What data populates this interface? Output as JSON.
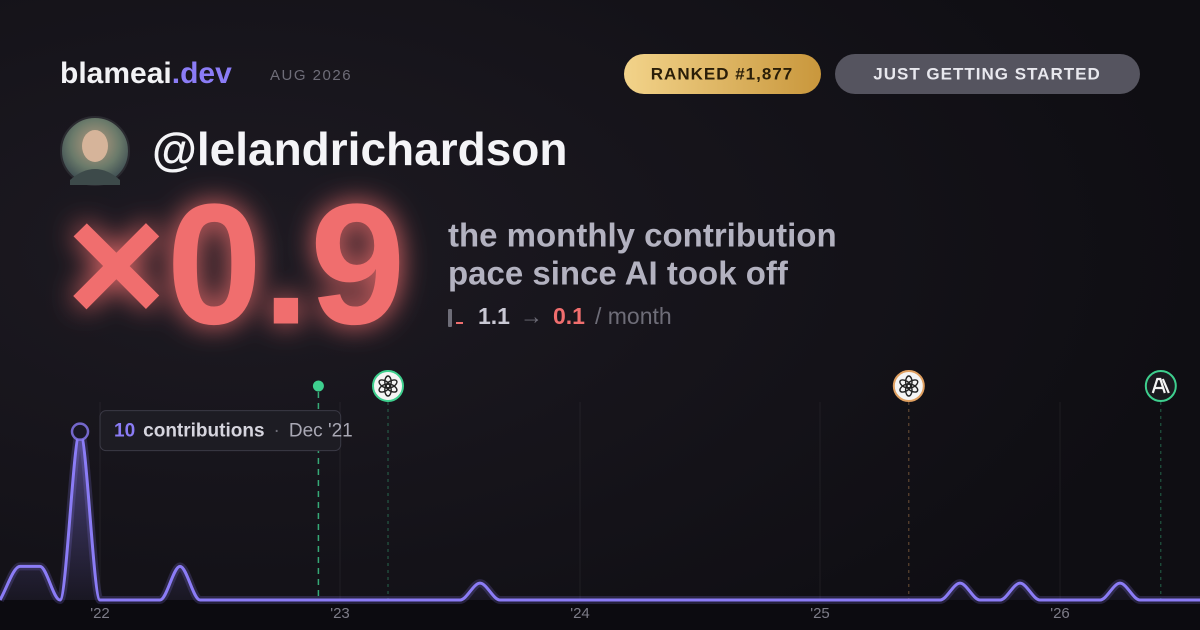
{
  "header": {
    "brand": "blameai",
    "brand_suffix": ".dev",
    "date": "AUG 2026",
    "rank": "RANKED #1,877",
    "status": "JUST GETTING STARTED"
  },
  "profile": {
    "username": "@lelandrichardson"
  },
  "stat": {
    "multiplier": "×0.9",
    "description": [
      "the monthly contribution",
      "pace since AI took off"
    ],
    "before": "1.1",
    "arrow": "→",
    "after": "0.1",
    "unit": "/ month"
  },
  "chart_data": {
    "type": "area",
    "color": "#8b7cf6",
    "x": [
      2021.5833,
      2021.6667,
      2021.75,
      2021.8333,
      2021.9167,
      2022,
      2022.0833,
      2022.1667,
      2022.25,
      2022.3333,
      2022.4167,
      2022.5,
      2022.5833,
      2022.6667,
      2022.75,
      2022.8333,
      2022.9167,
      2023,
      2023.0833,
      2023.1667,
      2023.25,
      2023.3333,
      2023.4167,
      2023.5,
      2023.5833,
      2023.6667,
      2023.75,
      2023.8333,
      2023.9167,
      2024,
      2024.0833,
      2024.1667,
      2024.25,
      2024.3333,
      2024.4167,
      2024.5,
      2024.5833,
      2024.6667,
      2024.75,
      2024.8333,
      2024.9167,
      2025,
      2025.0833,
      2025.1667,
      2025.25,
      2025.3333,
      2025.4167,
      2025.5,
      2025.5833,
      2025.6667,
      2025.75,
      2025.8333,
      2025.9167,
      2026,
      2026.0833,
      2026.1667,
      2026.25,
      2026.3333,
      2026.4167,
      2026.5,
      2026.5833
    ],
    "values": [
      0,
      2,
      2,
      0,
      10,
      0,
      0,
      0,
      0,
      2,
      0,
      0,
      0,
      0,
      0,
      0,
      0,
      0,
      0,
      0,
      0,
      0,
      0,
      0,
      1,
      0,
      0,
      0,
      0,
      0,
      0,
      0,
      0,
      0,
      0,
      0,
      0,
      0,
      0,
      0,
      0,
      0,
      0,
      0,
      0,
      0,
      0,
      0,
      1,
      0,
      0,
      1,
      0,
      0,
      0,
      0,
      1,
      0,
      0,
      0,
      0
    ],
    "xlim": [
      2021.5833,
      2026.5833
    ],
    "xticks": [
      {
        "value": 2022,
        "label": "'22"
      },
      {
        "value": 2023,
        "label": "'23"
      },
      {
        "value": 2024,
        "label": "'24"
      },
      {
        "value": 2025,
        "label": "'25"
      },
      {
        "value": 2026,
        "label": "'26"
      }
    ],
    "ylim": [
      0,
      12
    ],
    "grid": true,
    "tooltip": {
      "label": "contributions",
      "separator": "·",
      "date": "Dec '21"
    },
    "events": [
      {
        "x": 2022.91,
        "icon": "dot",
        "color": "#3ecf8e"
      },
      {
        "x": 2023.2,
        "icon": "openai",
        "color": "#3ecf8e"
      },
      {
        "x": 2025.37,
        "icon": "openai",
        "color": "#e0a060"
      },
      {
        "x": 2026.42,
        "icon": "anthropic",
        "color": "#3ecf8e"
      }
    ]
  }
}
